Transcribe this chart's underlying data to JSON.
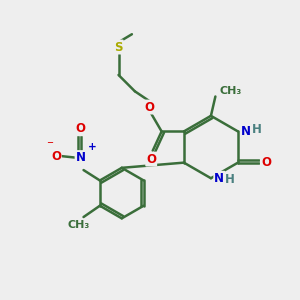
{
  "bg_color": "#eeeeee",
  "bond_color": "#3a6e3a",
  "bond_width": 1.8,
  "atom_colors": {
    "O": "#dd0000",
    "N": "#0000cc",
    "S": "#aaaa00",
    "H": "#4a8080",
    "C": "#3a6e3a",
    "plus": "#0000cc",
    "minus": "#dd0000"
  },
  "font_size": 8.5,
  "figsize": [
    3.0,
    3.0
  ],
  "dpi": 100
}
